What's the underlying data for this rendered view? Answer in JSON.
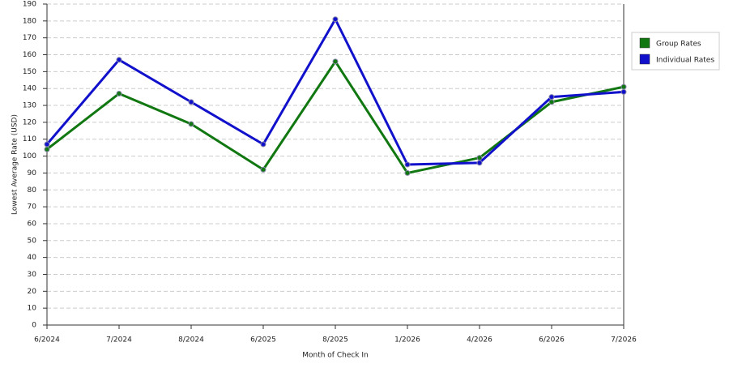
{
  "chart_data": {
    "type": "line",
    "x_label": "Month of Check In",
    "y_label": "Lowest Average Rate (USD)",
    "categories": [
      "6/2024",
      "7/2024",
      "8/2024",
      "6/2025",
      "8/2025",
      "1/2026",
      "4/2026",
      "6/2026",
      "7/2026"
    ],
    "series": [
      {
        "name": "Group Rates",
        "color": "#117711",
        "values": [
          104,
          137,
          119,
          92,
          156,
          90,
          99,
          132,
          141
        ]
      },
      {
        "name": "Individual Rates",
        "color": "#1111cc",
        "values": [
          107,
          157,
          132,
          107,
          181,
          95,
          96,
          135,
          138
        ]
      }
    ],
    "ylim": [
      0,
      190
    ],
    "yticks": [
      0,
      10,
      20,
      30,
      40,
      50,
      60,
      70,
      80,
      90,
      100,
      110,
      120,
      130,
      140,
      150,
      160,
      170,
      180,
      190
    ],
    "grid": true,
    "legend": "right"
  }
}
